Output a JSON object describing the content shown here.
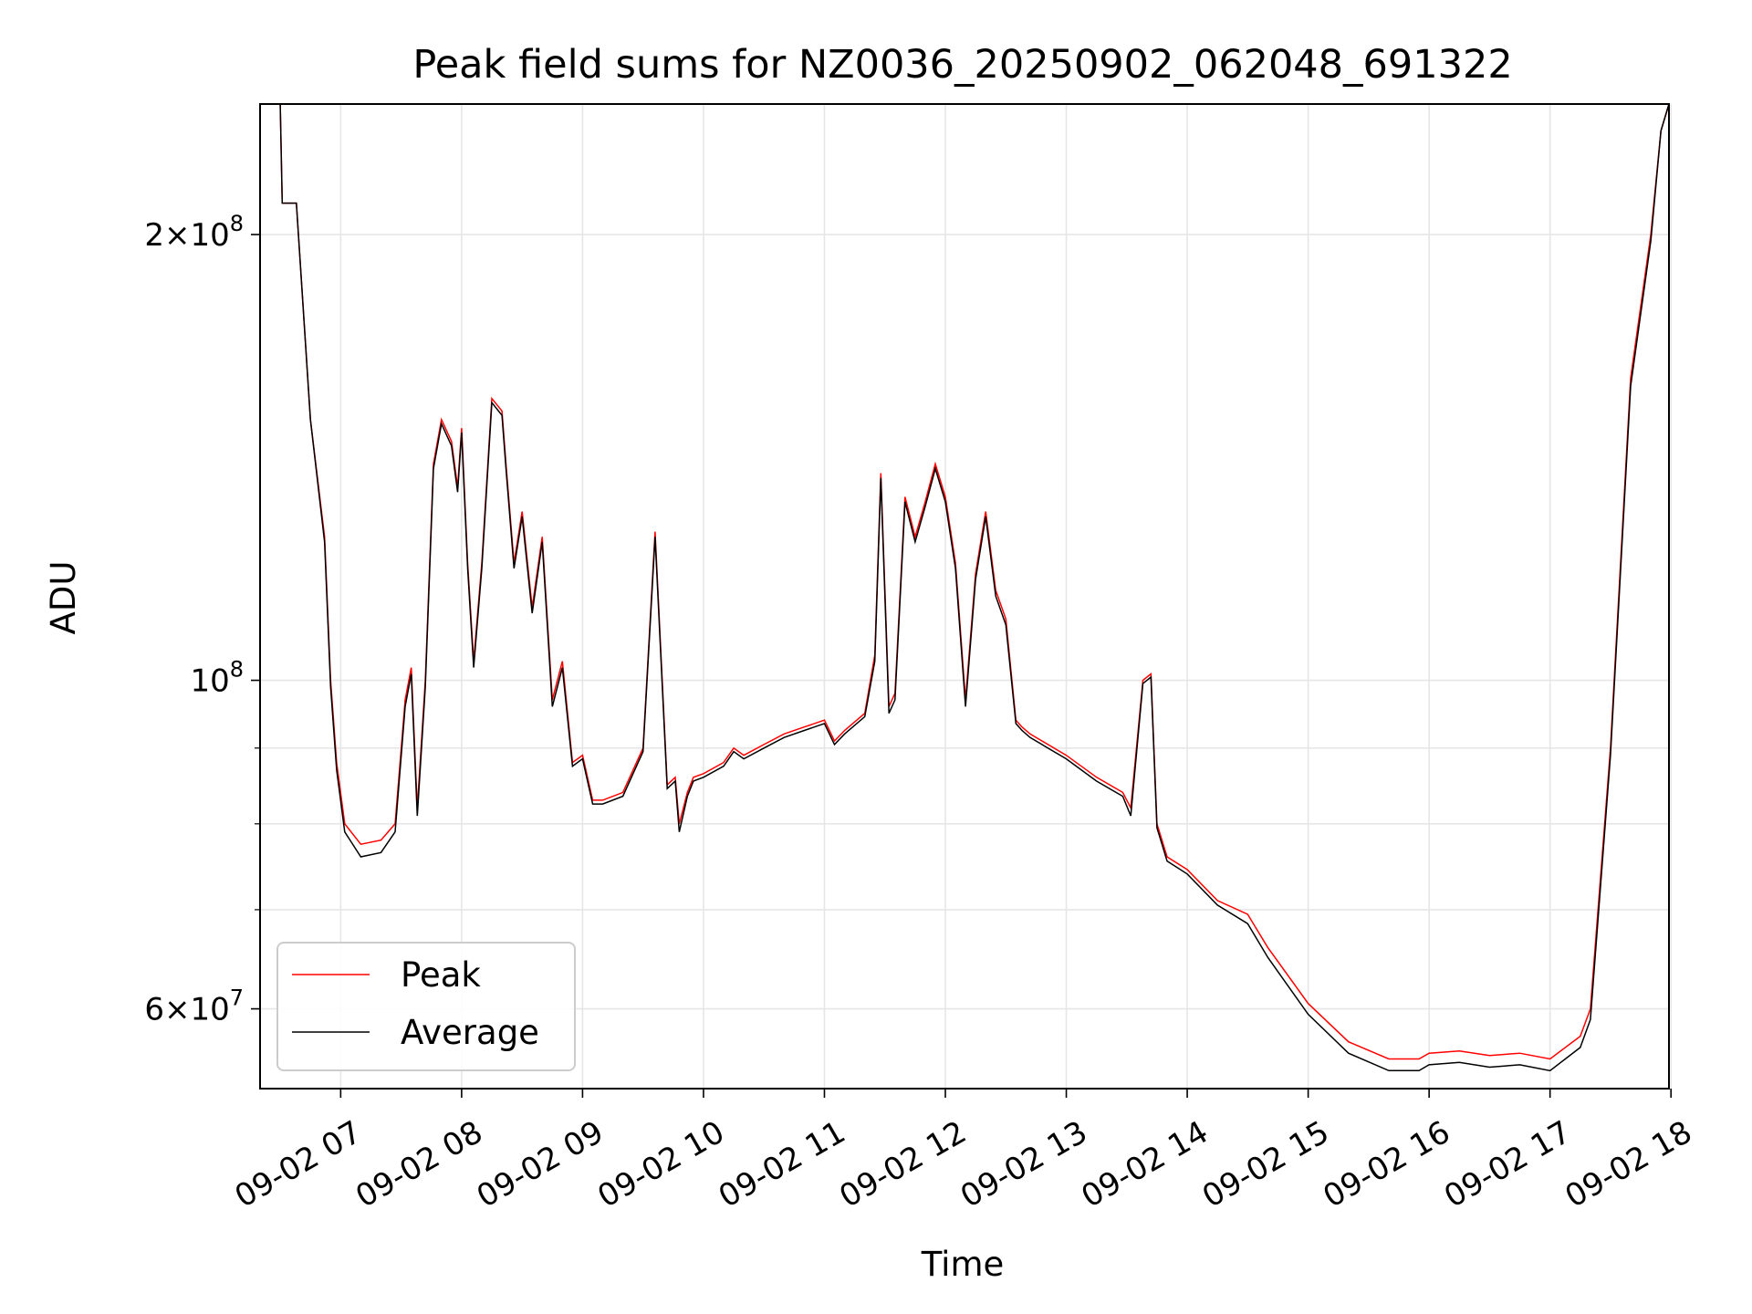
{
  "chart_data": {
    "type": "line",
    "title": "Peak field sums for NZ0036_20250902_062048_691322",
    "xlabel": "Time",
    "ylabel": "ADU",
    "x_unit": "date-hour",
    "xlim": [
      "2025-09-02 06:20",
      "2025-09-02 17:59"
    ],
    "ylim": [
      53000000,
      245000000
    ],
    "yscale": "log",
    "grid": true,
    "legend_loc": "lower left",
    "x_ticks": [
      "09-02 07",
      "09-02 08",
      "09-02 09",
      "09-02 10",
      "09-02 11",
      "09-02 12",
      "09-02 13",
      "09-02 14",
      "09-02 15",
      "09-02 16",
      "09-02 17",
      "09-02 18"
    ],
    "y_ticks": [
      {
        "value": 200000000,
        "mantissa": "2",
        "exp": "8"
      },
      {
        "value": 100000000,
        "mantissa": "",
        "exp": "8"
      },
      {
        "value": 60000000,
        "mantissa": "6",
        "exp": "7"
      }
    ],
    "y_minor_ticks": [
      70000000,
      80000000,
      90000000
    ],
    "series": [
      {
        "name": "Peak",
        "color": "#ff0000",
        "x": [
          "2025-09-02 06:20",
          "2025-09-02 06:30",
          "2025-09-02 06:31",
          "2025-09-02 06:38",
          "2025-09-02 06:45",
          "2025-09-02 06:52",
          "2025-09-02 06:55",
          "2025-09-02 06:58",
          "2025-09-02 07:02",
          "2025-09-02 07:10",
          "2025-09-02 07:20",
          "2025-09-02 07:27",
          "2025-09-02 07:32",
          "2025-09-02 07:35",
          "2025-09-02 07:38",
          "2025-09-02 07:42",
          "2025-09-02 07:46",
          "2025-09-02 07:50",
          "2025-09-02 07:55",
          "2025-09-02 07:58",
          "2025-09-02 08:00",
          "2025-09-02 08:03",
          "2025-09-02 08:06",
          "2025-09-02 08:10",
          "2025-09-02 08:15",
          "2025-09-02 08:20",
          "2025-09-02 08:22",
          "2025-09-02 08:26",
          "2025-09-02 08:30",
          "2025-09-02 08:35",
          "2025-09-02 08:40",
          "2025-09-02 08:45",
          "2025-09-02 08:50",
          "2025-09-02 08:55",
          "2025-09-02 09:00",
          "2025-09-02 09:05",
          "2025-09-02 09:10",
          "2025-09-02 09:20",
          "2025-09-02 09:30",
          "2025-09-02 09:36",
          "2025-09-02 09:42",
          "2025-09-02 09:46",
          "2025-09-02 09:48",
          "2025-09-02 09:52",
          "2025-09-02 09:55",
          "2025-09-02 10:00",
          "2025-09-02 10:10",
          "2025-09-02 10:15",
          "2025-09-02 10:20",
          "2025-09-02 10:30",
          "2025-09-02 10:40",
          "2025-09-02 10:50",
          "2025-09-02 11:00",
          "2025-09-02 11:05",
          "2025-09-02 11:10",
          "2025-09-02 11:20",
          "2025-09-02 11:25",
          "2025-09-02 11:28",
          "2025-09-02 11:32",
          "2025-09-02 11:35",
          "2025-09-02 11:40",
          "2025-09-02 11:45",
          "2025-09-02 11:50",
          "2025-09-02 11:55",
          "2025-09-02 12:00",
          "2025-09-02 12:05",
          "2025-09-02 12:10",
          "2025-09-02 12:15",
          "2025-09-02 12:20",
          "2025-09-02 12:25",
          "2025-09-02 12:30",
          "2025-09-02 12:35",
          "2025-09-02 12:38",
          "2025-09-02 12:42",
          "2025-09-02 13:00",
          "2025-09-02 13:15",
          "2025-09-02 13:28",
          "2025-09-02 13:32",
          "2025-09-02 13:38",
          "2025-09-02 13:42",
          "2025-09-02 13:45",
          "2025-09-02 13:50",
          "2025-09-02 14:00",
          "2025-09-02 14:15",
          "2025-09-02 14:30",
          "2025-09-02 14:40",
          "2025-09-02 15:00",
          "2025-09-02 15:20",
          "2025-09-02 15:40",
          "2025-09-02 15:55",
          "2025-09-02 16:00",
          "2025-09-02 16:15",
          "2025-09-02 16:30",
          "2025-09-02 16:45",
          "2025-09-02 17:00",
          "2025-09-02 17:15",
          "2025-09-02 17:20",
          "2025-09-02 17:30",
          "2025-09-02 17:40",
          "2025-09-02 17:50",
          "2025-09-02 17:55",
          "2025-09-02 17:59"
        ],
        "y": [
          245000000,
          245000000,
          210000000,
          210000000,
          150000000,
          125000000,
          100000000,
          88000000,
          80000000,
          77500000,
          78000000,
          80000000,
          97000000,
          102000000,
          82000000,
          100000000,
          140000000,
          150000000,
          145000000,
          135000000,
          148000000,
          120000000,
          103000000,
          120000000,
          155000000,
          152000000,
          140000000,
          120000000,
          130000000,
          112000000,
          125000000,
          97000000,
          103000000,
          88000000,
          89000000,
          83000000,
          83000000,
          84000000,
          90000000,
          126000000,
          85000000,
          86000000,
          80000000,
          84000000,
          86000000,
          86500000,
          88000000,
          90000000,
          89000000,
          90500000,
          92000000,
          93000000,
          94000000,
          91000000,
          92500000,
          95000000,
          104000000,
          138000000,
          96000000,
          98000000,
          133000000,
          125000000,
          132000000,
          140000000,
          133000000,
          120000000,
          97000000,
          118000000,
          130000000,
          115000000,
          110000000,
          94000000,
          93000000,
          92000000,
          89000000,
          86000000,
          84000000,
          82000000,
          100000000,
          101000000,
          80000000,
          76000000,
          74500000,
          71000000,
          69500000,
          66000000,
          60500000,
          57000000,
          55500000,
          55500000,
          56000000,
          56200000,
          55800000,
          56000000,
          55500000,
          57500000,
          60000000,
          90000000,
          160000000,
          200000000,
          235000000,
          245000000
        ]
      },
      {
        "name": "Average",
        "color": "#000000",
        "x": [
          "2025-09-02 06:20",
          "2025-09-02 06:30",
          "2025-09-02 06:31",
          "2025-09-02 06:38",
          "2025-09-02 06:45",
          "2025-09-02 06:52",
          "2025-09-02 06:55",
          "2025-09-02 06:58",
          "2025-09-02 07:02",
          "2025-09-02 07:10",
          "2025-09-02 07:20",
          "2025-09-02 07:27",
          "2025-09-02 07:32",
          "2025-09-02 07:35",
          "2025-09-02 07:38",
          "2025-09-02 07:42",
          "2025-09-02 07:46",
          "2025-09-02 07:50",
          "2025-09-02 07:55",
          "2025-09-02 07:58",
          "2025-09-02 08:00",
          "2025-09-02 08:03",
          "2025-09-02 08:06",
          "2025-09-02 08:10",
          "2025-09-02 08:15",
          "2025-09-02 08:20",
          "2025-09-02 08:22",
          "2025-09-02 08:26",
          "2025-09-02 08:30",
          "2025-09-02 08:35",
          "2025-09-02 08:40",
          "2025-09-02 08:45",
          "2025-09-02 08:50",
          "2025-09-02 08:55",
          "2025-09-02 09:00",
          "2025-09-02 09:05",
          "2025-09-02 09:10",
          "2025-09-02 09:20",
          "2025-09-02 09:30",
          "2025-09-02 09:36",
          "2025-09-02 09:42",
          "2025-09-02 09:46",
          "2025-09-02 09:48",
          "2025-09-02 09:52",
          "2025-09-02 09:55",
          "2025-09-02 10:00",
          "2025-09-02 10:10",
          "2025-09-02 10:15",
          "2025-09-02 10:20",
          "2025-09-02 10:30",
          "2025-09-02 10:40",
          "2025-09-02 10:50",
          "2025-09-02 11:00",
          "2025-09-02 11:05",
          "2025-09-02 11:10",
          "2025-09-02 11:20",
          "2025-09-02 11:25",
          "2025-09-02 11:28",
          "2025-09-02 11:32",
          "2025-09-02 11:35",
          "2025-09-02 11:40",
          "2025-09-02 11:45",
          "2025-09-02 11:50",
          "2025-09-02 11:55",
          "2025-09-02 12:00",
          "2025-09-02 12:05",
          "2025-09-02 12:10",
          "2025-09-02 12:15",
          "2025-09-02 12:20",
          "2025-09-02 12:25",
          "2025-09-02 12:30",
          "2025-09-02 12:35",
          "2025-09-02 12:38",
          "2025-09-02 12:42",
          "2025-09-02 13:00",
          "2025-09-02 13:15",
          "2025-09-02 13:28",
          "2025-09-02 13:32",
          "2025-09-02 13:38",
          "2025-09-02 13:42",
          "2025-09-02 13:45",
          "2025-09-02 13:50",
          "2025-09-02 14:00",
          "2025-09-02 14:15",
          "2025-09-02 14:30",
          "2025-09-02 14:40",
          "2025-09-02 15:00",
          "2025-09-02 15:20",
          "2025-09-02 15:40",
          "2025-09-02 15:55",
          "2025-09-02 16:00",
          "2025-09-02 16:15",
          "2025-09-02 16:30",
          "2025-09-02 16:45",
          "2025-09-02 17:00",
          "2025-09-02 17:15",
          "2025-09-02 17:20",
          "2025-09-02 17:30",
          "2025-09-02 17:40",
          "2025-09-02 17:50",
          "2025-09-02 17:55",
          "2025-09-02 17:59"
        ],
        "y": [
          245000000,
          245000000,
          210000000,
          210000000,
          150000000,
          124000000,
          99000000,
          87000000,
          79000000,
          76000000,
          76500000,
          79000000,
          96000000,
          101000000,
          81000000,
          99000000,
          139000000,
          149000000,
          144000000,
          134000000,
          147000000,
          119000000,
          102000000,
          119000000,
          154000000,
          151000000,
          139000000,
          119000000,
          129000000,
          111000000,
          124000000,
          96000000,
          102000000,
          87500000,
          88500000,
          82500000,
          82500000,
          83500000,
          89500000,
          125000000,
          84500000,
          85500000,
          79000000,
          83500000,
          85500000,
          86000000,
          87500000,
          89500000,
          88500000,
          90000000,
          91500000,
          92500000,
          93500000,
          90500000,
          92000000,
          94500000,
          103000000,
          137000000,
          95000000,
          97000000,
          132000000,
          124000000,
          131000000,
          139000000,
          132000000,
          119000000,
          96000000,
          117000000,
          129000000,
          114000000,
          109000000,
          93500000,
          92500000,
          91500000,
          88500000,
          85500000,
          83500000,
          81000000,
          99500000,
          100500000,
          79500000,
          75500000,
          74000000,
          70500000,
          68500000,
          65000000,
          59500000,
          56000000,
          54500000,
          54500000,
          55000000,
          55200000,
          54800000,
          55000000,
          54500000,
          56500000,
          59000000,
          89000000,
          158000000,
          198000000,
          235000000,
          245000000
        ]
      }
    ]
  }
}
